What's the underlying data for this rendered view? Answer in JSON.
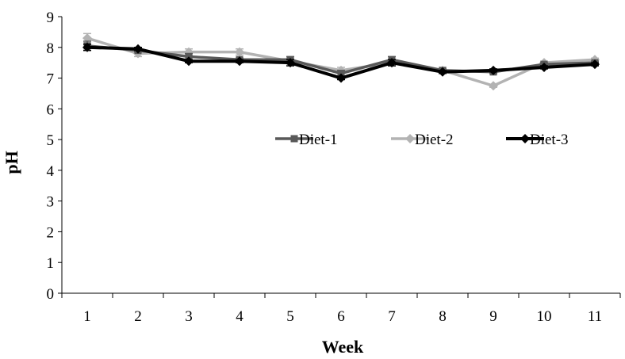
{
  "chart_data": {
    "type": "line",
    "title": "",
    "xlabel": "Week",
    "ylabel": "pH",
    "x": [
      1,
      2,
      3,
      4,
      5,
      6,
      7,
      8,
      9,
      10,
      11
    ],
    "x_tick_labels": [
      "1",
      "2",
      "3",
      "4",
      "5",
      "6",
      "7",
      "8",
      "9",
      "10",
      "11"
    ],
    "ylim": [
      0,
      9
    ],
    "y_ticks": [
      0,
      1,
      2,
      3,
      4,
      5,
      6,
      7,
      8,
      9
    ],
    "y_tick_labels": [
      "0",
      "1",
      "2",
      "3",
      "4",
      "5",
      "6",
      "7",
      "8",
      "9"
    ],
    "grid": false,
    "legend_position": "middle-right",
    "series": [
      {
        "name": "Diet-1",
        "color": "#595959",
        "marker": "square",
        "values": [
          8.05,
          7.9,
          7.7,
          7.6,
          7.6,
          7.15,
          7.6,
          7.25,
          7.2,
          7.45,
          7.5
        ],
        "errors": [
          0.15,
          0.05,
          0.1,
          0.05,
          0.1,
          0.1,
          0.1,
          0.05,
          0.05,
          0.05,
          0.05
        ]
      },
      {
        "name": "Diet-2",
        "color": "#b3b3b3",
        "marker": "diamond",
        "values": [
          8.3,
          7.8,
          7.85,
          7.85,
          7.55,
          7.25,
          7.5,
          7.25,
          6.75,
          7.5,
          7.6
        ],
        "errors": [
          0.15,
          0.1,
          0.1,
          0.1,
          0.1,
          0.1,
          0.1,
          0.1,
          0.05,
          0.05,
          0.05
        ]
      },
      {
        "name": "Diet-3",
        "color": "#000000",
        "marker": "diamond",
        "values": [
          8.0,
          7.95,
          7.55,
          7.55,
          7.5,
          7.0,
          7.5,
          7.2,
          7.25,
          7.35,
          7.45
        ],
        "errors": [
          0.1,
          0.05,
          0.05,
          0.05,
          0.1,
          0.05,
          0.1,
          0.05,
          0.05,
          0.05,
          0.05
        ]
      }
    ]
  }
}
